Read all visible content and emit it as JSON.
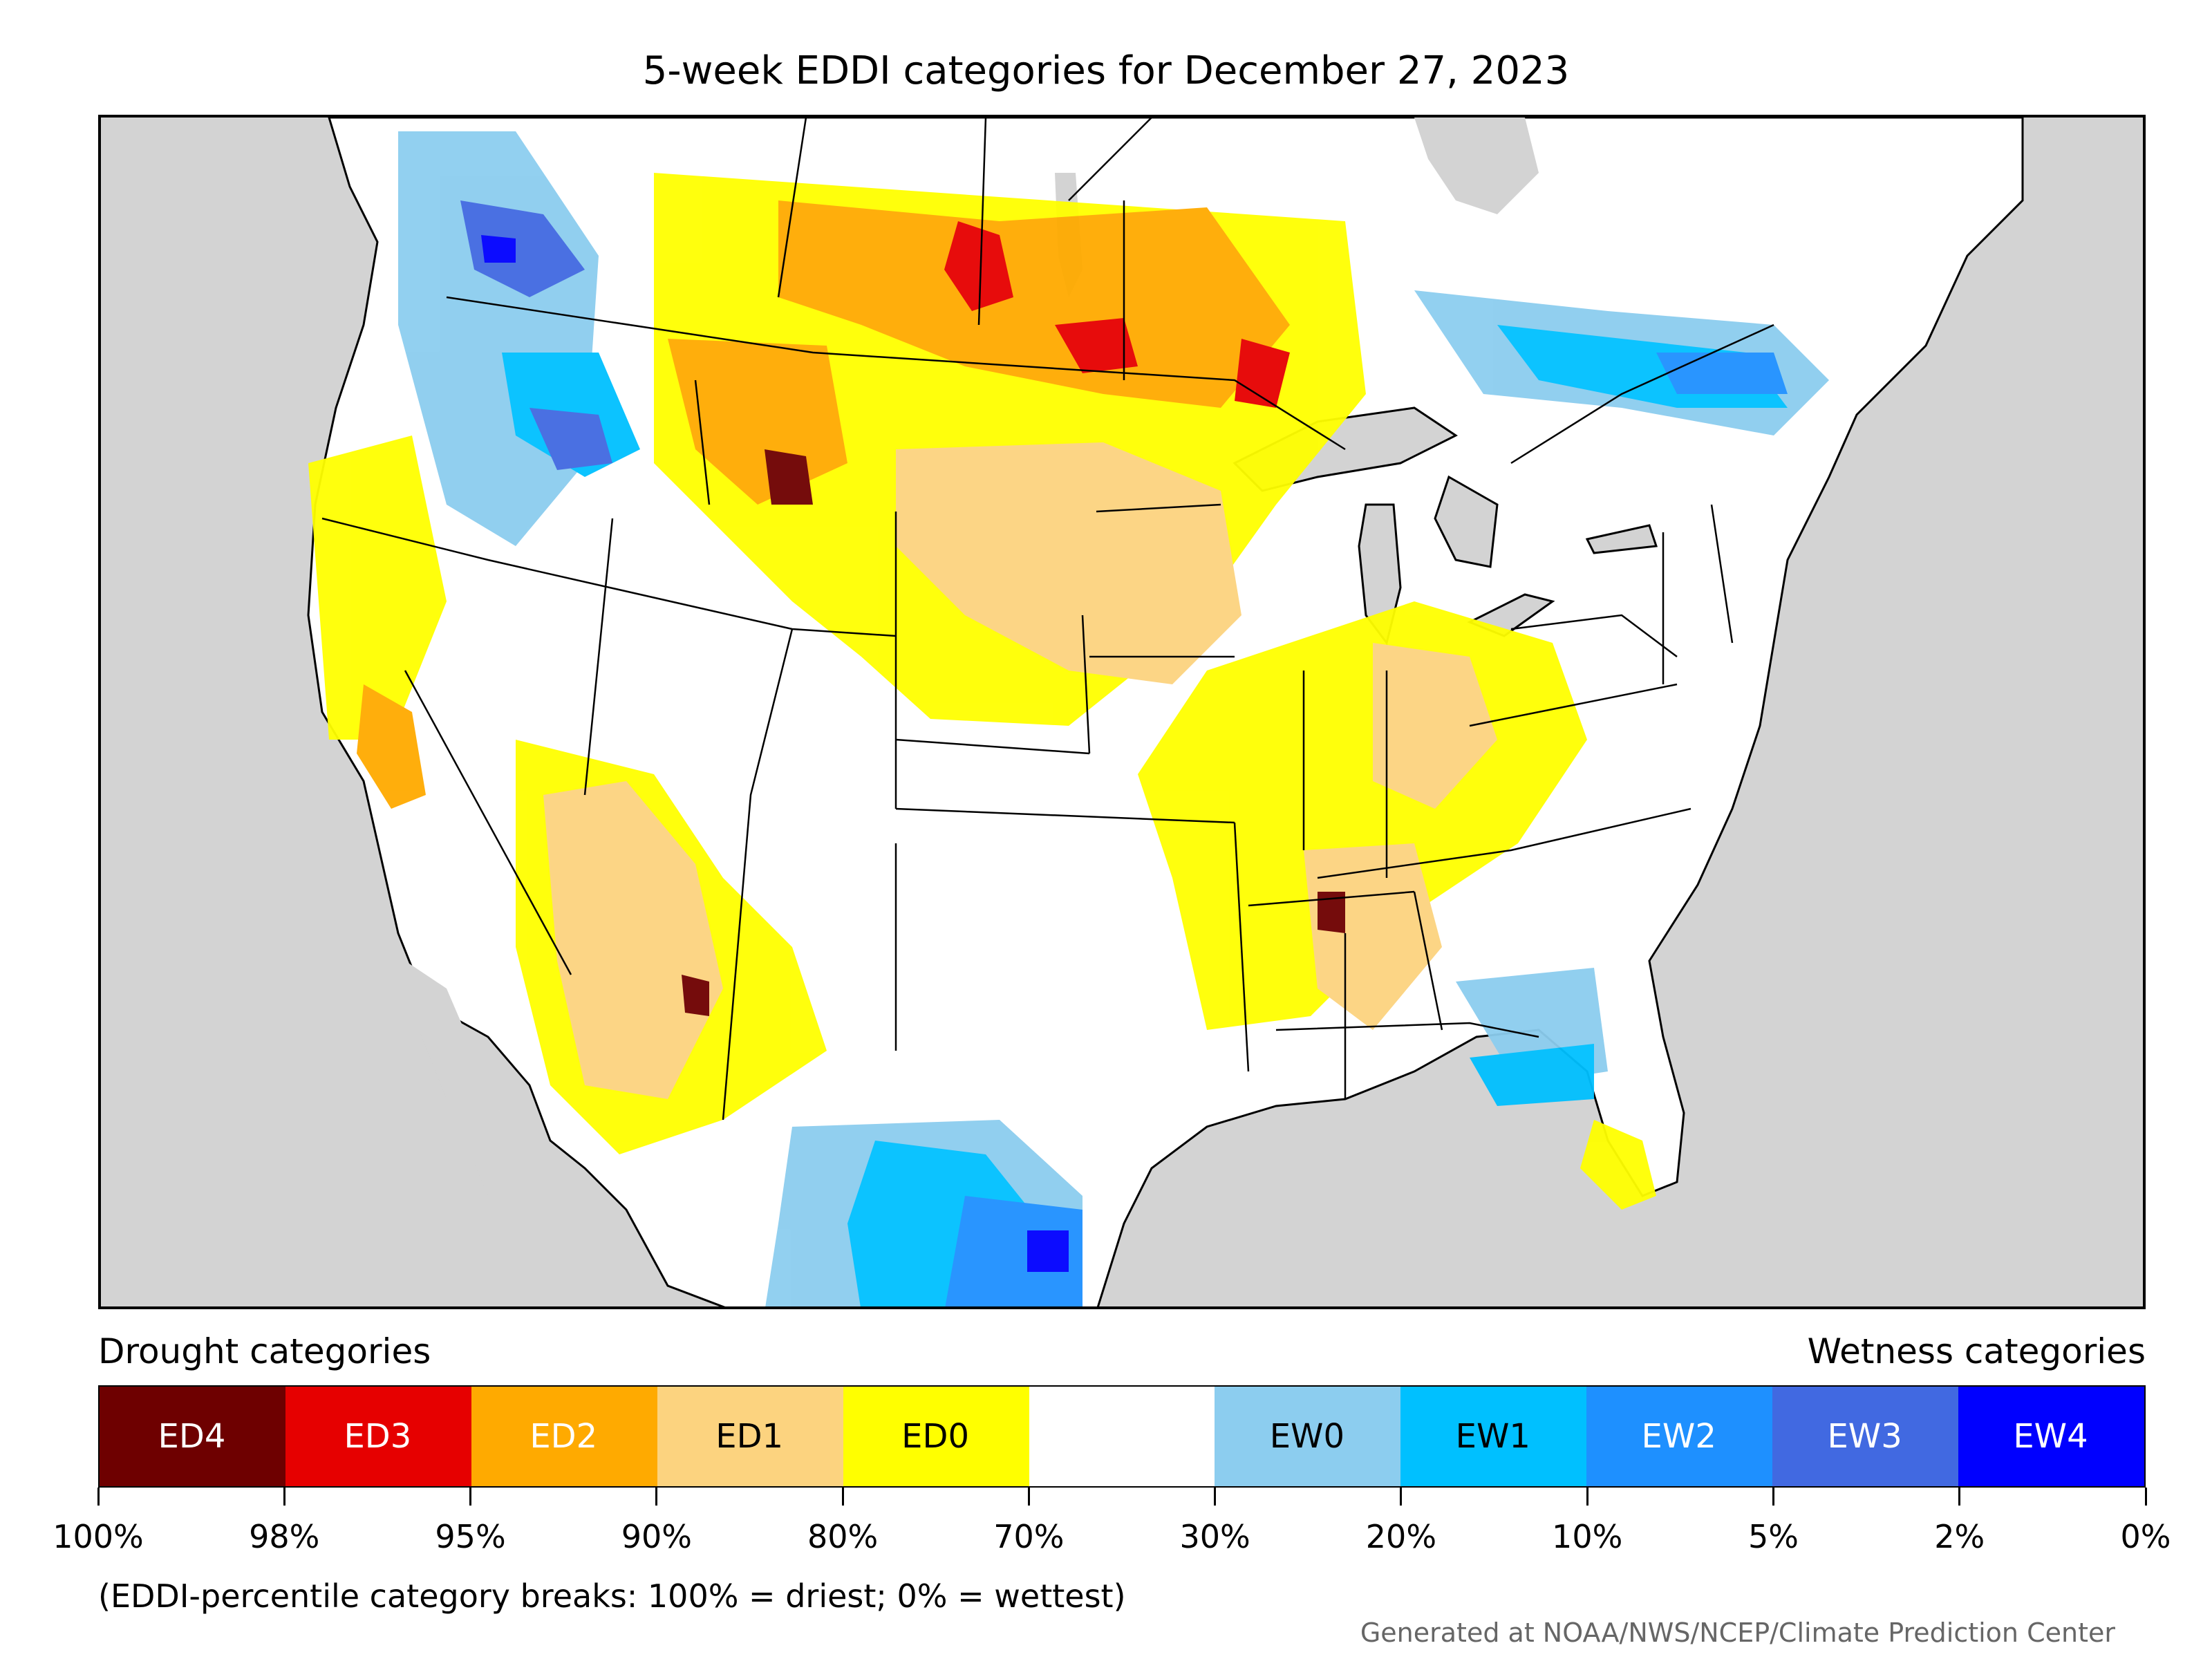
{
  "title": "5-week EDDI categories for December 27, 2023",
  "legend": {
    "drought_title": "Drought categories",
    "wetness_title": "Wetness categories",
    "categories": [
      {
        "label": "ED4",
        "color": "#6e0000",
        "text_color": "#ffffff"
      },
      {
        "label": "ED3",
        "color": "#e60000",
        "text_color": "#ffffff"
      },
      {
        "label": "ED2",
        "color": "#ffaa00",
        "text_color": "#ffffff"
      },
      {
        "label": "ED1",
        "color": "#fcd37f",
        "text_color": "#000000"
      },
      {
        "label": "ED0",
        "color": "#ffff00",
        "text_color": "#000000"
      },
      {
        "label": "",
        "color": "#ffffff",
        "text_color": "#000000"
      },
      {
        "label": "EW0",
        "color": "#8ccdef",
        "text_color": "#000000"
      },
      {
        "label": "EW1",
        "color": "#00c0ff",
        "text_color": "#000000"
      },
      {
        "label": "EW2",
        "color": "#1e90ff",
        "text_color": "#ffffff"
      },
      {
        "label": "EW3",
        "color": "#4169e1",
        "text_color": "#ffffff"
      },
      {
        "label": "EW4",
        "color": "#0000ff",
        "text_color": "#ffffff"
      }
    ],
    "ticks": [
      "100%",
      "98%",
      "95%",
      "90%",
      "80%",
      "70%",
      "30%",
      "20%",
      "10%",
      "5%",
      "2%",
      "0%"
    ]
  },
  "note": "(EDDI-percentile category breaks: 100% = driest; 0% = wettest)",
  "credit": "Generated at NOAA/NWS/NCEP/Climate Prediction Center",
  "colors": {
    "ocean": "#d3d3d3",
    "land": "#ffffff",
    "lakes": "#d3d3d3"
  }
}
